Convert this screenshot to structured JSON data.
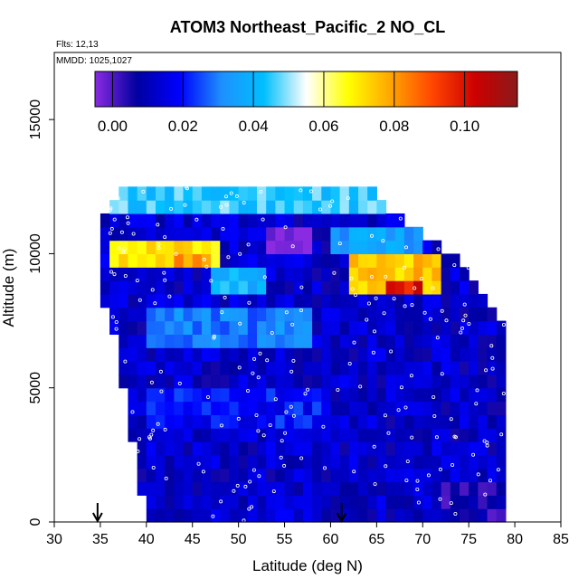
{
  "chart_data": {
    "type": "heatmap",
    "title": "ATOM3 Northeast_Pacific_2 NO_CL",
    "flights_note": "Flts: 12,13",
    "dates_note": "MMDD: 1025,1027",
    "xlabel": "Latitude (deg N)",
    "ylabel": "Altitude (m)",
    "xlim": [
      30,
      85
    ],
    "ylim": [
      0,
      17500
    ],
    "x_ticks": [
      30,
      35,
      40,
      45,
      50,
      55,
      60,
      65,
      70,
      75,
      80,
      85
    ],
    "y_ticks": [
      0,
      5000,
      10000,
      15000
    ],
    "colorbar": {
      "range": [
        -0.005,
        0.115
      ],
      "ticks": [
        0.0,
        0.02,
        0.04,
        0.06,
        0.08,
        0.1
      ],
      "tick_labels": [
        "0.00",
        "0.02",
        "0.04",
        "0.06",
        "0.08",
        "0.10"
      ],
      "colors": [
        "#8a2be2",
        "#0000a0",
        "#0000ff",
        "#1e90ff",
        "#00bfff",
        "#ffffff",
        "#ffff00",
        "#ffa500",
        "#ff4500",
        "#cc0000",
        "#8b1a1a"
      ]
    },
    "arrows_lat": [
      34.7,
      61.2
    ],
    "cell_height_m": 500,
    "cell_width_deg": 1,
    "column_extents": [
      {
        "lat": 35,
        "bottom": 8000,
        "top": 11000
      },
      {
        "lat": 36,
        "bottom": 7500,
        "top": 12000
      },
      {
        "lat": 37,
        "bottom": 6000,
        "top": 12500
      },
      {
        "lat": 38,
        "bottom": 4000,
        "top": 12500
      },
      {
        "lat": 39,
        "bottom": 1500,
        "top": 12500
      },
      {
        "lat": 40,
        "bottom": 0,
        "top": 12500
      },
      {
        "lat": 45,
        "bottom": 0,
        "top": 12500
      },
      {
        "lat": 55,
        "bottom": 0,
        "top": 12500
      },
      {
        "lat": 65,
        "bottom": 0,
        "top": 12500
      },
      {
        "lat": 66,
        "bottom": 0,
        "top": 12000
      },
      {
        "lat": 68,
        "bottom": 0,
        "top": 11500
      },
      {
        "lat": 70,
        "bottom": 0,
        "top": 11000
      },
      {
        "lat": 72,
        "bottom": 0,
        "top": 10500
      },
      {
        "lat": 74,
        "bottom": 0,
        "top": 10000
      },
      {
        "lat": 75,
        "bottom": 0,
        "top": 9500
      },
      {
        "lat": 77,
        "bottom": 0,
        "top": 8500
      },
      {
        "lat": 79,
        "bottom": 0,
        "top": 7500
      }
    ],
    "features": [
      {
        "lat": [
          36,
          48
        ],
        "alt": [
          9300,
          10300
        ],
        "value": 0.07
      },
      {
        "lat": [
          43,
          47
        ],
        "alt": [
          9500,
          10200
        ],
        "value": 0.08
      },
      {
        "lat": [
          62,
          72
        ],
        "alt": [
          8600,
          9800
        ],
        "value": 0.075
      },
      {
        "lat": [
          66,
          70
        ],
        "alt": [
          8400,
          9000
        ],
        "value": 0.1
      },
      {
        "lat": [
          36,
          66
        ],
        "alt": [
          11500,
          12500
        ],
        "value": 0.045
      },
      {
        "lat": [
          53,
          58
        ],
        "alt": [
          9800,
          10800
        ],
        "value": -0.005
      },
      {
        "lat": [
          60,
          70
        ],
        "alt": [
          10000,
          11000
        ],
        "value": 0.035
      },
      {
        "lat": [
          40,
          58
        ],
        "alt": [
          6500,
          8000
        ],
        "value": 0.03
      },
      {
        "lat": [
          47,
          53
        ],
        "alt": [
          8500,
          9500
        ],
        "value": 0.04
      },
      {
        "lat": [
          40,
          60
        ],
        "alt": [
          3500,
          5000
        ],
        "value": 0.02
      },
      {
        "lat": [
          72,
          80
        ],
        "alt": [
          0,
          1500
        ],
        "value": 0.005
      }
    ],
    "background_value": 0.012
  }
}
